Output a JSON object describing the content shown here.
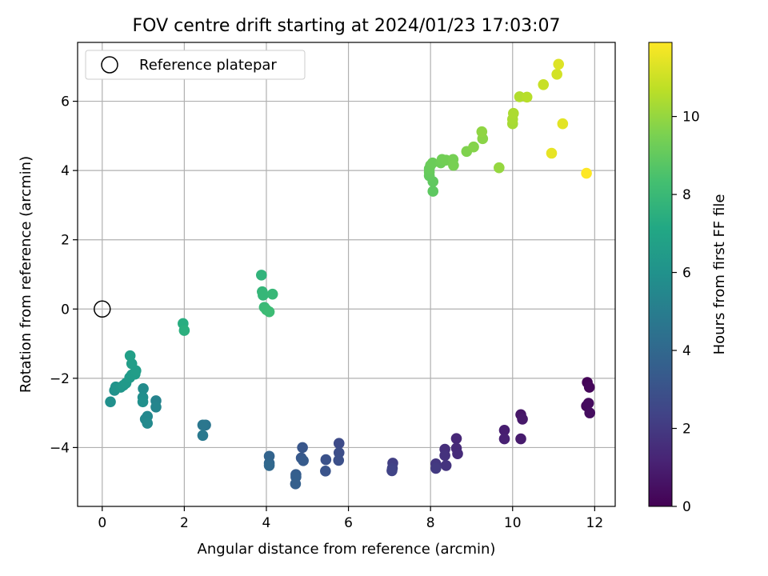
{
  "chart_data": {
    "type": "scatter",
    "title": "FOV centre drift starting at 2024/01/23 17:03:07",
    "xlabel": "Angular distance from reference (arcmin)",
    "ylabel": "Rotation from reference (arcmin)",
    "xlim": [
      -0.6,
      12.5
    ],
    "ylim": [
      -5.7,
      7.7
    ],
    "xticks": [
      0,
      2,
      4,
      6,
      8,
      10,
      12
    ],
    "yticks": [
      -4,
      -2,
      0,
      2,
      4,
      6
    ],
    "grid": true,
    "legend": {
      "placement": "top-left",
      "entries": [
        "Reference platepar"
      ]
    },
    "reference_point": {
      "x": 0,
      "y": 0,
      "label": "Reference platepar"
    },
    "colorbar": {
      "label": "Hours from first FF file",
      "colormap": "viridis",
      "range": [
        0,
        11.9
      ],
      "ticks": [
        0,
        2,
        4,
        6,
        8,
        10
      ]
    },
    "series": [
      {
        "points": [
          {
            "x": 11.82,
            "y": -2.12,
            "c": 0.1
          },
          {
            "x": 11.87,
            "y": -2.26,
            "c": 0.2
          },
          {
            "x": 11.8,
            "y": -2.8,
            "c": 0.3
          },
          {
            "x": 11.85,
            "y": -2.72,
            "c": 0.35
          },
          {
            "x": 11.88,
            "y": -3.0,
            "c": 0.4
          },
          {
            "x": 10.2,
            "y": -3.05,
            "c": 0.7
          },
          {
            "x": 10.24,
            "y": -3.18,
            "c": 0.8
          },
          {
            "x": 10.2,
            "y": -3.75,
            "c": 0.9
          },
          {
            "x": 9.8,
            "y": -3.5,
            "c": 1.0
          },
          {
            "x": 9.8,
            "y": -3.75,
            "c": 1.1
          },
          {
            "x": 8.63,
            "y": -3.74,
            "c": 1.3
          },
          {
            "x": 8.63,
            "y": -4.02,
            "c": 1.4
          },
          {
            "x": 8.66,
            "y": -4.18,
            "c": 1.45
          },
          {
            "x": 8.35,
            "y": -4.05,
            "c": 1.6
          },
          {
            "x": 8.35,
            "y": -4.23,
            "c": 1.7
          },
          {
            "x": 8.38,
            "y": -4.52,
            "c": 1.8
          },
          {
            "x": 8.13,
            "y": -4.47,
            "c": 1.9
          },
          {
            "x": 8.13,
            "y": -4.6,
            "c": 2.0
          },
          {
            "x": 7.08,
            "y": -4.45,
            "c": 2.2
          },
          {
            "x": 7.07,
            "y": -4.6,
            "c": 2.3
          },
          {
            "x": 7.06,
            "y": -4.67,
            "c": 2.4
          },
          {
            "x": 5.77,
            "y": -3.88,
            "c": 2.7
          },
          {
            "x": 5.77,
            "y": -4.15,
            "c": 2.8
          },
          {
            "x": 5.76,
            "y": -4.37,
            "c": 2.9
          },
          {
            "x": 5.45,
            "y": -4.35,
            "c": 3.0
          },
          {
            "x": 5.44,
            "y": -4.68,
            "c": 3.1
          },
          {
            "x": 4.88,
            "y": -4.0,
            "c": 3.2
          },
          {
            "x": 4.85,
            "y": -4.3,
            "c": 3.3
          },
          {
            "x": 4.9,
            "y": -4.38,
            "c": 3.4
          },
          {
            "x": 4.72,
            "y": -4.78,
            "c": 3.5
          },
          {
            "x": 4.72,
            "y": -4.85,
            "c": 3.55
          },
          {
            "x": 4.71,
            "y": -5.05,
            "c": 3.6
          },
          {
            "x": 4.07,
            "y": -4.25,
            "c": 3.8
          },
          {
            "x": 4.07,
            "y": -4.45,
            "c": 3.9
          },
          {
            "x": 4.07,
            "y": -4.52,
            "c": 4.0
          },
          {
            "x": 2.52,
            "y": -3.35,
            "c": 4.6
          },
          {
            "x": 2.45,
            "y": -3.35,
            "c": 4.7
          },
          {
            "x": 2.45,
            "y": -3.65,
            "c": 4.8
          },
          {
            "x": 1.31,
            "y": -2.65,
            "c": 5.3
          },
          {
            "x": 1.31,
            "y": -2.83,
            "c": 5.4
          },
          {
            "x": 1.1,
            "y": -3.1,
            "c": 5.5
          },
          {
            "x": 1.05,
            "y": -3.18,
            "c": 5.5
          },
          {
            "x": 1.1,
            "y": -3.3,
            "c": 5.6
          },
          {
            "x": 1.0,
            "y": -2.3,
            "c": 5.7
          },
          {
            "x": 0.99,
            "y": -2.55,
            "c": 5.8
          },
          {
            "x": 0.99,
            "y": -2.68,
            "c": 5.9
          },
          {
            "x": 0.2,
            "y": -2.68,
            "c": 5.9
          },
          {
            "x": 0.3,
            "y": -2.35,
            "c": 6.0
          },
          {
            "x": 0.33,
            "y": -2.25,
            "c": 6.1
          },
          {
            "x": 0.45,
            "y": -2.26,
            "c": 6.2
          },
          {
            "x": 0.52,
            "y": -2.2,
            "c": 6.3
          },
          {
            "x": 0.58,
            "y": -2.14,
            "c": 6.35
          },
          {
            "x": 0.67,
            "y": -1.98,
            "c": 6.4
          },
          {
            "x": 0.72,
            "y": -1.9,
            "c": 6.45
          },
          {
            "x": 0.8,
            "y": -1.88,
            "c": 6.5
          },
          {
            "x": 0.82,
            "y": -1.78,
            "c": 6.55
          },
          {
            "x": 0.72,
            "y": -1.58,
            "c": 6.6
          },
          {
            "x": 0.68,
            "y": -1.35,
            "c": 6.7
          },
          {
            "x": 1.97,
            "y": -0.42,
            "c": 7.4
          },
          {
            "x": 2.0,
            "y": -0.62,
            "c": 7.5
          },
          {
            "x": 3.88,
            "y": 0.98,
            "c": 7.7
          },
          {
            "x": 3.9,
            "y": 0.5,
            "c": 7.8
          },
          {
            "x": 3.92,
            "y": 0.4,
            "c": 7.85
          },
          {
            "x": 4.15,
            "y": 0.43,
            "c": 7.9
          },
          {
            "x": 3.95,
            "y": 0.05,
            "c": 8.0
          },
          {
            "x": 4.0,
            "y": -0.02,
            "c": 8.05
          },
          {
            "x": 4.07,
            "y": -0.08,
            "c": 8.1
          },
          {
            "x": 8.06,
            "y": 3.4,
            "c": 8.9
          },
          {
            "x": 8.06,
            "y": 3.68,
            "c": 8.95
          },
          {
            "x": 7.97,
            "y": 3.85,
            "c": 9.0
          },
          {
            "x": 7.97,
            "y": 3.95,
            "c": 9.05
          },
          {
            "x": 7.97,
            "y": 4.05,
            "c": 9.1
          },
          {
            "x": 8.0,
            "y": 4.15,
            "c": 9.15
          },
          {
            "x": 8.05,
            "y": 4.22,
            "c": 9.2
          },
          {
            "x": 8.25,
            "y": 4.22,
            "c": 9.25
          },
          {
            "x": 8.28,
            "y": 4.32,
            "c": 9.3
          },
          {
            "x": 8.38,
            "y": 4.3,
            "c": 9.35
          },
          {
            "x": 8.55,
            "y": 4.32,
            "c": 9.4
          },
          {
            "x": 8.56,
            "y": 4.15,
            "c": 9.45
          },
          {
            "x": 8.88,
            "y": 4.55,
            "c": 9.6
          },
          {
            "x": 9.05,
            "y": 4.68,
            "c": 9.7
          },
          {
            "x": 9.27,
            "y": 4.92,
            "c": 9.8
          },
          {
            "x": 9.25,
            "y": 5.12,
            "c": 9.9
          },
          {
            "x": 9.67,
            "y": 4.08,
            "c": 10.0
          },
          {
            "x": 10.0,
            "y": 5.35,
            "c": 10.3
          },
          {
            "x": 10.0,
            "y": 5.48,
            "c": 10.35
          },
          {
            "x": 10.02,
            "y": 5.65,
            "c": 10.4
          },
          {
            "x": 10.17,
            "y": 6.13,
            "c": 10.5
          },
          {
            "x": 10.35,
            "y": 6.12,
            "c": 10.6
          },
          {
            "x": 10.75,
            "y": 6.48,
            "c": 10.9
          },
          {
            "x": 11.08,
            "y": 6.78,
            "c": 11.1
          },
          {
            "x": 11.12,
            "y": 7.07,
            "c": 11.3
          },
          {
            "x": 11.22,
            "y": 5.35,
            "c": 11.4
          },
          {
            "x": 10.95,
            "y": 4.5,
            "c": 11.5
          },
          {
            "x": 11.8,
            "y": 3.92,
            "c": 11.9
          }
        ]
      }
    ]
  }
}
